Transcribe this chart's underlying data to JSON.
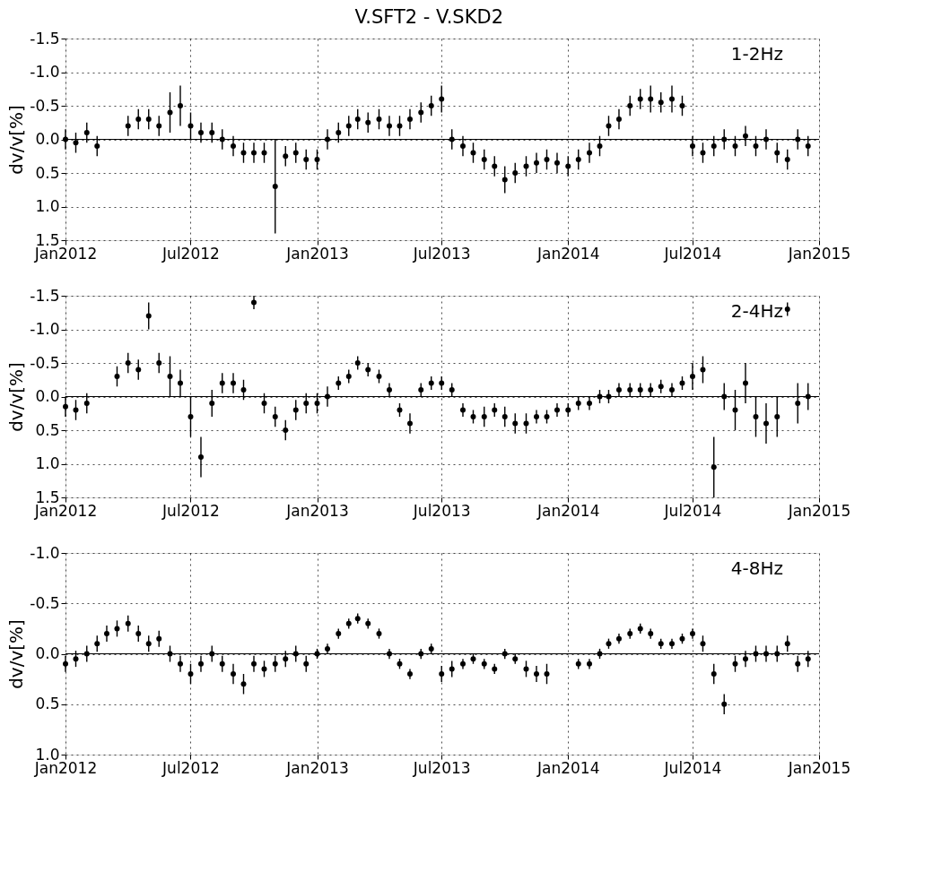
{
  "chart_data": [
    {
      "type": "scatter",
      "title": "V.SFT2 - V.SKD2",
      "ylabel": "dv/v[%]",
      "annotations": [
        "1-2Hz"
      ],
      "marker": "circle",
      "grid": true,
      "xlim": [
        "2012-01-01",
        "2015-01-01"
      ],
      "xticks": [
        {
          "value": "2012-01-01",
          "label": "Jan2012"
        },
        {
          "value": "2012-07-01",
          "label": "Jul2012"
        },
        {
          "value": "2013-01-01",
          "label": "Jan2013"
        },
        {
          "value": "2013-07-01",
          "label": "Jul2013"
        },
        {
          "value": "2014-01-01",
          "label": "Jan2014"
        },
        {
          "value": "2014-07-01",
          "label": "Jul2014"
        },
        {
          "value": "2015-01-01",
          "label": "Jan2015"
        }
      ],
      "ylim": [
        1.5,
        -1.5
      ],
      "yticks": [
        -1.5,
        {
          "value": -1,
          "label": "-1.0"
        },
        -0.5,
        {
          "value": 0,
          "label": "0.0"
        },
        0.5,
        {
          "value": 1,
          "label": "1.0"
        },
        1.5
      ],
      "ref_lines": [
        {
          "axis": "y",
          "value": 0,
          "color": "#000000"
        }
      ],
      "series": [
        {
          "color": "#000000",
          "x": [
            "2012-01-01",
            "2012-01-16",
            "2012-02-01",
            "2012-02-16",
            "2012-03-01",
            "2012-03-16",
            "2012-04-01",
            "2012-04-16",
            "2012-05-01",
            "2012-05-16",
            "2012-06-01",
            "2012-06-16",
            "2012-07-01",
            "2012-07-16",
            "2012-08-01",
            "2012-08-16",
            "2012-09-01",
            "2012-09-16",
            "2012-10-01",
            "2012-10-16",
            "2012-11-01",
            "2012-11-16",
            "2012-12-01",
            "2012-12-16",
            "2013-01-01",
            "2013-01-16",
            "2013-02-01",
            "2013-02-16",
            "2013-03-01",
            "2013-03-16",
            "2013-04-01",
            "2013-04-16",
            "2013-05-01",
            "2013-05-16",
            "2013-06-01",
            "2013-06-16",
            "2013-07-01",
            "2013-07-16",
            "2013-08-01",
            "2013-08-16",
            "2013-09-01",
            "2013-09-16",
            "2013-10-01",
            "2013-10-16",
            "2013-11-01",
            "2013-11-16",
            "2013-12-01",
            "2013-12-16",
            "2014-01-01",
            "2014-01-16",
            "2014-02-01",
            "2014-02-16",
            "2014-03-01",
            "2014-03-16",
            "2014-04-01",
            "2014-04-16",
            "2014-05-01",
            "2014-05-16",
            "2014-06-01",
            "2014-06-16",
            "2014-07-01",
            "2014-07-16",
            "2014-08-01",
            "2014-08-16",
            "2014-09-01",
            "2014-09-16",
            "2014-10-01",
            "2014-10-16",
            "2014-11-01",
            "2014-11-16",
            "2014-12-01",
            "2014-12-16"
          ],
          "values": [
            0.0,
            0.05,
            -0.1,
            0.1,
            null,
            null,
            -0.2,
            -0.3,
            -0.3,
            -0.2,
            -0.4,
            -0.5,
            -0.2,
            -0.1,
            -0.1,
            0.0,
            0.1,
            0.2,
            0.2,
            0.2,
            0.7,
            0.25,
            0.2,
            0.3,
            0.3,
            0.0,
            -0.1,
            -0.2,
            -0.3,
            -0.25,
            -0.3,
            -0.2,
            -0.2,
            -0.3,
            -0.4,
            -0.5,
            -0.6,
            0.0,
            0.1,
            0.2,
            0.3,
            0.4,
            0.6,
            0.5,
            0.4,
            0.35,
            0.3,
            0.35,
            0.4,
            0.3,
            0.2,
            0.1,
            -0.2,
            -0.3,
            -0.5,
            -0.6,
            -0.6,
            -0.55,
            -0.6,
            -0.5,
            0.1,
            0.2,
            0.1,
            0.0,
            0.1,
            -0.05,
            0.1,
            0.0,
            0.2,
            0.3,
            0.0,
            0.1
          ],
          "errors": [
            0.15,
            0.15,
            0.15,
            0.15,
            null,
            null,
            0.15,
            0.15,
            0.15,
            0.15,
            0.3,
            0.3,
            0.2,
            0.15,
            0.15,
            0.15,
            0.15,
            0.15,
            0.15,
            0.15,
            0.7,
            0.15,
            0.15,
            0.15,
            0.15,
            0.15,
            0.15,
            0.15,
            0.15,
            0.15,
            0.15,
            0.15,
            0.15,
            0.15,
            0.15,
            0.15,
            0.2,
            0.15,
            0.15,
            0.15,
            0.15,
            0.15,
            0.2,
            0.15,
            0.15,
            0.15,
            0.15,
            0.15,
            0.15,
            0.15,
            0.15,
            0.15,
            0.15,
            0.15,
            0.15,
            0.15,
            0.2,
            0.15,
            0.2,
            0.15,
            0.15,
            0.15,
            0.15,
            0.15,
            0.15,
            0.15,
            0.15,
            0.15,
            0.15,
            0.15,
            0.15,
            0.15
          ]
        }
      ]
    },
    {
      "type": "scatter",
      "ylabel": "dv/v[%]",
      "annotations": [
        "2-4Hz"
      ],
      "marker": "circle",
      "grid": true,
      "xlim": [
        "2012-01-01",
        "2015-01-01"
      ],
      "xticks": [
        {
          "value": "2012-01-01",
          "label": "Jan2012"
        },
        {
          "value": "2012-07-01",
          "label": "Jul2012"
        },
        {
          "value": "2013-01-01",
          "label": "Jan2013"
        },
        {
          "value": "2013-07-01",
          "label": "Jul2013"
        },
        {
          "value": "2014-01-01",
          "label": "Jan2014"
        },
        {
          "value": "2014-07-01",
          "label": "Jul2014"
        },
        {
          "value": "2015-01-01",
          "label": "Jan2015"
        }
      ],
      "ylim": [
        1.5,
        -1.5
      ],
      "yticks": [
        -1.5,
        {
          "value": -1,
          "label": "-1.0"
        },
        -0.5,
        {
          "value": 0,
          "label": "0.0"
        },
        0.5,
        {
          "value": 1,
          "label": "1.0"
        },
        1.5
      ],
      "ref_lines": [
        {
          "axis": "y",
          "value": 0,
          "color": "#000000"
        }
      ],
      "series": [
        {
          "color": "#000000",
          "x": [
            "2012-01-01",
            "2012-01-16",
            "2012-02-01",
            "2012-02-16",
            "2012-03-01",
            "2012-03-16",
            "2012-04-01",
            "2012-04-16",
            "2012-05-01",
            "2012-05-16",
            "2012-06-01",
            "2012-06-16",
            "2012-07-01",
            "2012-07-16",
            "2012-08-01",
            "2012-08-16",
            "2012-09-01",
            "2012-09-16",
            "2012-10-01",
            "2012-10-16",
            "2012-11-01",
            "2012-11-16",
            "2012-12-01",
            "2012-12-16",
            "2013-01-01",
            "2013-01-16",
            "2013-02-01",
            "2013-02-16",
            "2013-03-01",
            "2013-03-16",
            "2013-04-01",
            "2013-04-16",
            "2013-05-01",
            "2013-05-16",
            "2013-06-01",
            "2013-06-16",
            "2013-07-01",
            "2013-07-16",
            "2013-08-01",
            "2013-08-16",
            "2013-09-01",
            "2013-09-16",
            "2013-10-01",
            "2013-10-16",
            "2013-11-01",
            "2013-11-16",
            "2013-12-01",
            "2013-12-16",
            "2014-01-01",
            "2014-01-16",
            "2014-02-01",
            "2014-02-16",
            "2014-03-01",
            "2014-03-16",
            "2014-04-01",
            "2014-04-16",
            "2014-05-01",
            "2014-05-16",
            "2014-06-01",
            "2014-06-16",
            "2014-07-01",
            "2014-07-16",
            "2014-08-01",
            "2014-08-16",
            "2014-09-01",
            "2014-09-16",
            "2014-10-01",
            "2014-10-16",
            "2014-11-01",
            "2014-11-16",
            "2014-12-01",
            "2014-12-16"
          ],
          "values": [
            0.15,
            0.2,
            0.1,
            null,
            null,
            -0.3,
            -0.5,
            -0.4,
            -1.2,
            -0.5,
            -0.3,
            -0.2,
            0.3,
            0.9,
            0.1,
            -0.2,
            -0.2,
            -0.1,
            -1.4,
            0.1,
            0.3,
            0.5,
            0.2,
            0.1,
            0.1,
            0.0,
            -0.2,
            -0.3,
            -0.5,
            -0.4,
            -0.3,
            -0.1,
            0.2,
            0.4,
            -0.1,
            -0.2,
            -0.2,
            -0.1,
            0.2,
            0.3,
            0.3,
            0.2,
            0.3,
            0.4,
            0.4,
            0.3,
            0.3,
            0.2,
            0.2,
            0.1,
            0.1,
            0.0,
            0.0,
            -0.1,
            -0.1,
            -0.1,
            -0.1,
            -0.15,
            -0.1,
            -0.2,
            -0.3,
            -0.4,
            1.05,
            0.0,
            0.2,
            -0.2,
            0.3,
            0.4,
            0.3,
            -1.3,
            0.1,
            0.0
          ],
          "errors": [
            0.15,
            0.15,
            0.15,
            null,
            null,
            0.15,
            0.15,
            0.15,
            0.2,
            0.15,
            0.3,
            0.2,
            0.3,
            0.3,
            0.2,
            0.15,
            0.15,
            0.15,
            0.1,
            0.15,
            0.15,
            0.15,
            0.15,
            0.15,
            0.15,
            0.15,
            0.1,
            0.1,
            0.1,
            0.1,
            0.1,
            0.1,
            0.1,
            0.15,
            0.1,
            0.1,
            0.1,
            0.1,
            0.1,
            0.1,
            0.15,
            0.1,
            0.15,
            0.15,
            0.15,
            0.1,
            0.1,
            0.1,
            0.1,
            0.1,
            0.1,
            0.1,
            0.1,
            0.1,
            0.1,
            0.1,
            0.1,
            0.1,
            0.1,
            0.1,
            0.2,
            0.2,
            0.45,
            0.2,
            0.3,
            0.3,
            0.3,
            0.3,
            0.3,
            0.1,
            0.3,
            0.2
          ]
        }
      ]
    },
    {
      "type": "scatter",
      "ylabel": "dv/v[%]",
      "annotations": [
        "4-8Hz"
      ],
      "marker": "circle",
      "grid": true,
      "xlim": [
        "2012-01-01",
        "2015-01-01"
      ],
      "xticks": [
        {
          "value": "2012-01-01",
          "label": "Jan2012"
        },
        {
          "value": "2012-07-01",
          "label": "Jul2012"
        },
        {
          "value": "2013-01-01",
          "label": "Jan2013"
        },
        {
          "value": "2013-07-01",
          "label": "Jul2013"
        },
        {
          "value": "2014-01-01",
          "label": "Jan2014"
        },
        {
          "value": "2014-07-01",
          "label": "Jul2014"
        },
        {
          "value": "2015-01-01",
          "label": "Jan2015"
        }
      ],
      "ylim": [
        1.0,
        -1.0
      ],
      "yticks": [
        {
          "value": -1,
          "label": "-1.0"
        },
        -0.5,
        {
          "value": 0,
          "label": "0.0"
        },
        0.5,
        {
          "value": 1,
          "label": "1.0"
        }
      ],
      "ref_lines": [
        {
          "axis": "y",
          "value": 0,
          "color": "#000000"
        }
      ],
      "series": [
        {
          "color": "#000000",
          "x": [
            "2012-01-01",
            "2012-01-16",
            "2012-02-01",
            "2012-02-16",
            "2012-03-01",
            "2012-03-16",
            "2012-04-01",
            "2012-04-16",
            "2012-05-01",
            "2012-05-16",
            "2012-06-01",
            "2012-06-16",
            "2012-07-01",
            "2012-07-16",
            "2012-08-01",
            "2012-08-16",
            "2012-09-01",
            "2012-09-16",
            "2012-10-01",
            "2012-10-16",
            "2012-11-01",
            "2012-11-16",
            "2012-12-01",
            "2012-12-16",
            "2013-01-01",
            "2013-01-16",
            "2013-02-01",
            "2013-02-16",
            "2013-03-01",
            "2013-03-16",
            "2013-04-01",
            "2013-04-16",
            "2013-05-01",
            "2013-05-16",
            "2013-06-01",
            "2013-06-16",
            "2013-07-01",
            "2013-07-16",
            "2013-08-01",
            "2013-08-16",
            "2013-09-01",
            "2013-09-16",
            "2013-10-01",
            "2013-10-16",
            "2013-11-01",
            "2013-11-16",
            "2013-12-01",
            "2013-12-16",
            "2014-01-01",
            "2014-01-16",
            "2014-02-01",
            "2014-02-16",
            "2014-03-01",
            "2014-03-16",
            "2014-04-01",
            "2014-04-16",
            "2014-05-01",
            "2014-05-16",
            "2014-06-01",
            "2014-06-16",
            "2014-07-01",
            "2014-07-16",
            "2014-08-01",
            "2014-08-16",
            "2014-09-01",
            "2014-09-16",
            "2014-10-01",
            "2014-10-16",
            "2014-11-01",
            "2014-11-16",
            "2014-12-01",
            "2014-12-16"
          ],
          "values": [
            0.1,
            0.05,
            0.0,
            -0.1,
            -0.2,
            -0.25,
            -0.3,
            -0.2,
            -0.1,
            -0.15,
            0.0,
            0.1,
            0.2,
            0.1,
            0.0,
            0.1,
            0.2,
            0.3,
            0.1,
            0.15,
            0.1,
            0.05,
            0.0,
            0.1,
            0.0,
            -0.05,
            -0.2,
            -0.3,
            -0.35,
            -0.3,
            -0.2,
            0.0,
            0.1,
            0.2,
            0.0,
            -0.05,
            0.2,
            0.15,
            0.1,
            0.05,
            0.1,
            0.15,
            0.0,
            0.05,
            0.15,
            0.2,
            0.2,
            null,
            null,
            0.1,
            0.1,
            0.0,
            -0.1,
            -0.15,
            -0.2,
            -0.25,
            -0.2,
            -0.1,
            -0.1,
            -0.15,
            -0.2,
            -0.1,
            0.2,
            0.5,
            0.1,
            0.05,
            0.0,
            0.0,
            0.0,
            -0.1,
            0.1,
            0.05
          ],
          "errors": [
            0.08,
            0.08,
            0.08,
            0.08,
            0.08,
            0.08,
            0.08,
            0.08,
            0.08,
            0.08,
            0.08,
            0.08,
            0.1,
            0.08,
            0.08,
            0.08,
            0.1,
            0.1,
            0.08,
            0.08,
            0.08,
            0.08,
            0.08,
            0.08,
            0.05,
            0.05,
            0.05,
            0.05,
            0.05,
            0.05,
            0.05,
            0.05,
            0.05,
            0.05,
            0.05,
            0.05,
            0.08,
            0.08,
            0.05,
            0.05,
            0.05,
            0.05,
            0.05,
            0.05,
            0.08,
            0.08,
            0.1,
            null,
            null,
            0.05,
            0.05,
            0.05,
            0.05,
            0.05,
            0.05,
            0.05,
            0.05,
            0.05,
            0.05,
            0.05,
            0.05,
            0.08,
            0.1,
            0.1,
            0.08,
            0.08,
            0.08,
            0.08,
            0.08,
            0.08,
            0.08,
            0.08
          ]
        }
      ]
    }
  ]
}
